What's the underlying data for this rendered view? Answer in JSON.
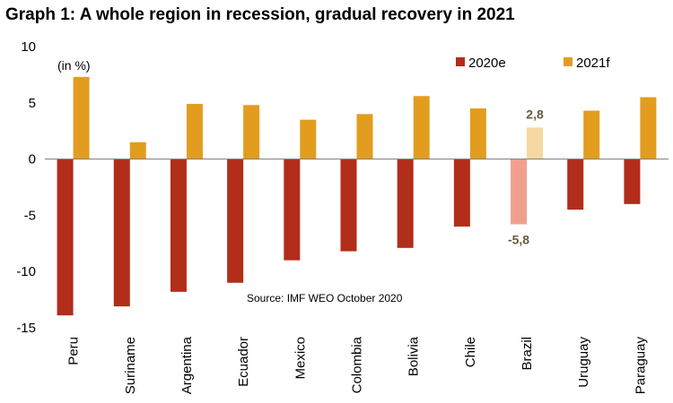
{
  "title": "Graph 1: A whole region in recession, gradual recovery in 2021",
  "chart_data": {
    "type": "bar",
    "title": "Graph 1: A whole region in recession, gradual recovery in 2021",
    "unit_note": "(in %)",
    "source": "Source: IMF WEO October 2020",
    "categories": [
      "Peru",
      "Suriname",
      "Argentina",
      "Ecuador",
      "Mexico",
      "Colombia",
      "Bolivia",
      "Chile",
      "Brazil",
      "Uruguay",
      "Paraguay"
    ],
    "series": [
      {
        "name": "2020e",
        "color": "#b22d1a",
        "highlight_color": "#f2a08e",
        "values": [
          -13.9,
          -13.1,
          -11.8,
          -11.0,
          -9.0,
          -8.2,
          -7.9,
          -6.0,
          -5.8,
          -4.5,
          -4.0
        ]
      },
      {
        "name": "2021f",
        "color": "#e29d1f",
        "highlight_color": "#f5d9a0",
        "values": [
          7.3,
          1.5,
          4.9,
          4.8,
          3.5,
          4.0,
          5.6,
          4.5,
          2.8,
          4.3,
          5.5
        ]
      }
    ],
    "highlight_category": "Brazil",
    "data_labels": [
      {
        "category": "Brazil",
        "series": "2020e",
        "text": "-5,8"
      },
      {
        "category": "Brazil",
        "series": "2021f",
        "text": "2,8"
      }
    ],
    "ylim": [
      -15,
      10
    ],
    "yticks": [
      10,
      5,
      0,
      -5,
      -10,
      -15
    ],
    "grid": false,
    "legend": "top-right",
    "xlabel": "",
    "ylabel": ""
  }
}
